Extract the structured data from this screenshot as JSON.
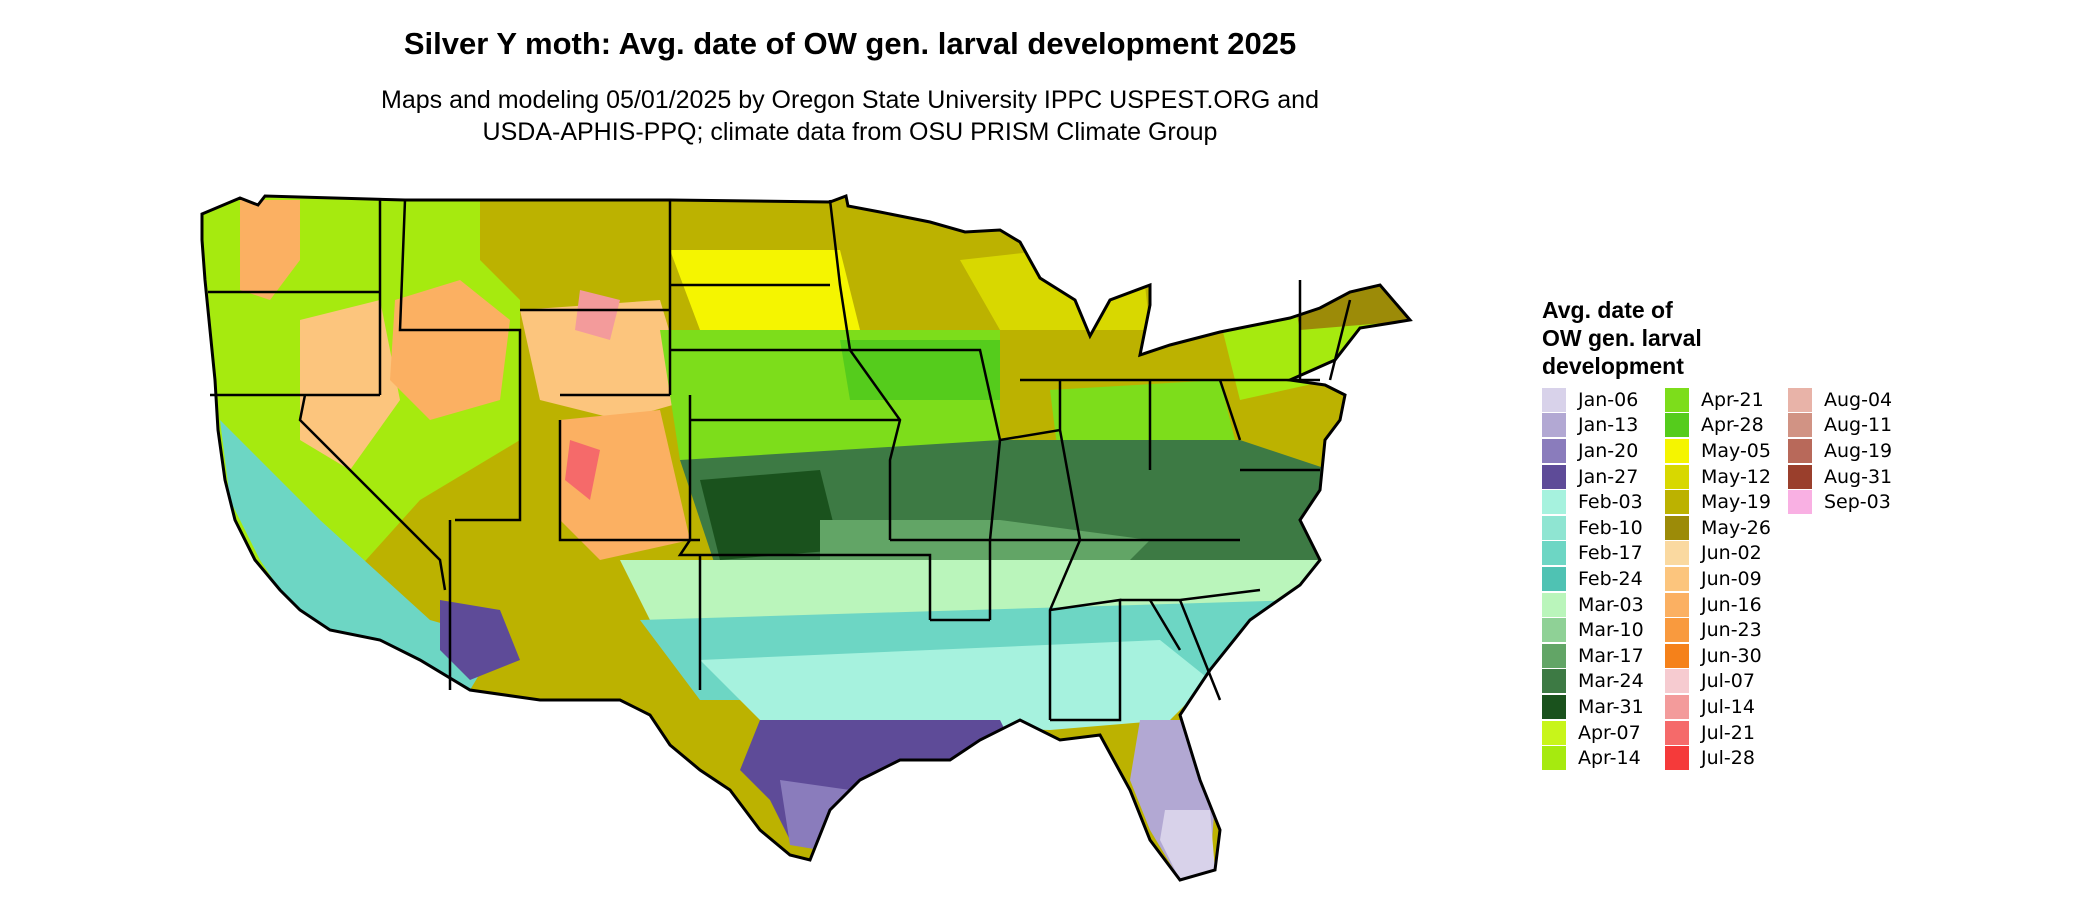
{
  "title": "Silver Y moth: Avg. date of OW gen. larval development 2025",
  "subtitle_line1": "Maps and modeling 05/01/2025 by Oregon State University IPPC USPEST.ORG and",
  "subtitle_line2": "USDA-APHIS-PPQ; climate data from OSU PRISM Climate Group",
  "legend": {
    "title_line1": "Avg. date of",
    "title_line2": "OW gen. larval",
    "title_line3": "development",
    "items": [
      {
        "label": "Jan-06",
        "color": "#d8d2ea"
      },
      {
        "label": "Jan-13",
        "color": "#b2a8d3"
      },
      {
        "label": "Jan-20",
        "color": "#8a7cbc"
      },
      {
        "label": "Jan-27",
        "color": "#5e4b98"
      },
      {
        "label": "Feb-03",
        "color": "#a6f2de"
      },
      {
        "label": "Feb-10",
        "color": "#8fe5d2"
      },
      {
        "label": "Feb-17",
        "color": "#6dd6c4"
      },
      {
        "label": "Feb-24",
        "color": "#4fc2b3"
      },
      {
        "label": "Mar-03",
        "color": "#baf5bb"
      },
      {
        "label": "Mar-10",
        "color": "#8fd196"
      },
      {
        "label": "Mar-17",
        "color": "#62a566"
      },
      {
        "label": "Mar-24",
        "color": "#3d7a44"
      },
      {
        "label": "Mar-31",
        "color": "#1a521d"
      },
      {
        "label": "Apr-07",
        "color": "#c8f51a"
      },
      {
        "label": "Apr-14",
        "color": "#a6ea0f"
      },
      {
        "label": "Apr-21",
        "color": "#7ddd1b"
      },
      {
        "label": "Apr-28",
        "color": "#55cc1c"
      },
      {
        "label": "May-05",
        "color": "#f5f500"
      },
      {
        "label": "May-12",
        "color": "#d8d800"
      },
      {
        "label": "May-19",
        "color": "#bcb200"
      },
      {
        "label": "May-26",
        "color": "#9c8b08"
      },
      {
        "label": "Jun-02",
        "color": "#fad9a0"
      },
      {
        "label": "Jun-09",
        "color": "#fcc57d"
      },
      {
        "label": "Jun-16",
        "color": "#fbb062"
      },
      {
        "label": "Jun-23",
        "color": "#f99a3e"
      },
      {
        "label": "Jun-30",
        "color": "#f5811a"
      },
      {
        "label": "Jul-07",
        "color": "#f6cbd0"
      },
      {
        "label": "Jul-14",
        "color": "#f39b9b"
      },
      {
        "label": "Jul-21",
        "color": "#f56a6a"
      },
      {
        "label": "Jul-28",
        "color": "#f53a3a"
      },
      {
        "label": "Aug-04",
        "color": "#e8b3a8"
      },
      {
        "label": "Aug-11",
        "color": "#d19384"
      },
      {
        "label": "Aug-19",
        "color": "#b8695a"
      },
      {
        "label": "Aug-31",
        "color": "#9a3f2c"
      },
      {
        "label": "Sep-03",
        "color": "#f9b0e3"
      }
    ]
  }
}
